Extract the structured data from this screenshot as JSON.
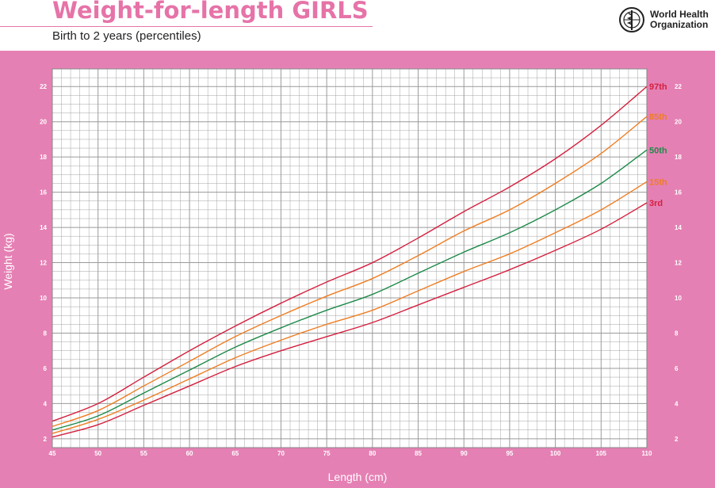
{
  "header": {
    "title": "Weight-for-length GIRLS",
    "subtitle": "Birth to 2 years (percentiles)",
    "org_line1": "World Health",
    "org_line2": "Organization",
    "logo_icon": "who-emblem-icon"
  },
  "colors": {
    "panel": "#e580b4",
    "grid": "#9a9a9a",
    "plot_bg": "#ffffff",
    "p97": "#d4203f",
    "p85": "#ef7d22",
    "p50": "#1e8a4a",
    "p15": "#ef7d22",
    "p3": "#d4203f"
  },
  "chart_data": {
    "type": "line",
    "title": "Weight-for-length GIRLS",
    "subtitle": "Birth to 2 years (percentiles)",
    "xlabel": "Length (cm)",
    "ylabel": "Weight (kg)",
    "xlim": [
      45,
      110
    ],
    "ylim": [
      1.5,
      23
    ],
    "x_ticks": [
      45,
      50,
      55,
      60,
      65,
      70,
      75,
      80,
      85,
      90,
      95,
      100,
      105,
      110
    ],
    "y_ticks": [
      2,
      4,
      6,
      8,
      10,
      12,
      14,
      16,
      18,
      20,
      22
    ],
    "grid": true,
    "legend": "curve-end labels at right",
    "x": [
      45,
      50,
      55,
      60,
      65,
      70,
      75,
      80,
      85,
      90,
      95,
      100,
      105,
      110
    ],
    "series": [
      {
        "name": "97th",
        "color_key": "p97",
        "values": [
          3.0,
          4.0,
          5.5,
          7.0,
          8.4,
          9.7,
          10.9,
          12.0,
          13.4,
          14.9,
          16.3,
          17.9,
          19.8,
          22.0
        ]
      },
      {
        "name": "85th",
        "color_key": "p85",
        "values": [
          2.7,
          3.6,
          5.0,
          6.4,
          7.8,
          9.0,
          10.1,
          11.1,
          12.4,
          13.8,
          15.0,
          16.5,
          18.2,
          20.3
        ]
      },
      {
        "name": "50th",
        "color_key": "p50",
        "values": [
          2.5,
          3.3,
          4.6,
          5.9,
          7.2,
          8.3,
          9.3,
          10.2,
          11.4,
          12.6,
          13.7,
          15.0,
          16.5,
          18.4
        ]
      },
      {
        "name": "15th",
        "color_key": "p15",
        "values": [
          2.3,
          3.1,
          4.2,
          5.4,
          6.6,
          7.6,
          8.5,
          9.3,
          10.4,
          11.5,
          12.5,
          13.7,
          15.0,
          16.6
        ]
      },
      {
        "name": "3rd",
        "color_key": "p3",
        "values": [
          2.1,
          2.8,
          3.9,
          5.0,
          6.1,
          7.0,
          7.8,
          8.6,
          9.6,
          10.6,
          11.6,
          12.7,
          13.9,
          15.4
        ]
      }
    ]
  }
}
